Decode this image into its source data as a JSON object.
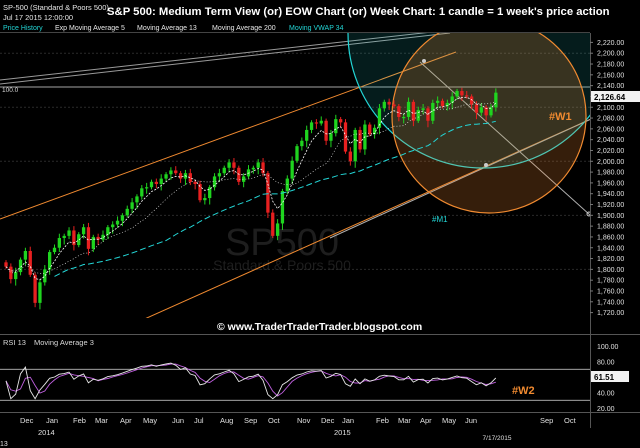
{
  "header": {
    "symbol": "SP-500 (Standard & Poors 500)",
    "datetime": "Jul 17 2015 12:00:00",
    "title": "S&P 500: Medium Term View (or) EOW Chart (or) Week Chart: 1 candle = 1 week's price action",
    "legend": [
      {
        "label": "Price History",
        "color": "#23d6d6"
      },
      {
        "label": "Exp Moving Average 5",
        "color": "#e8e8e8"
      },
      {
        "label": "Moving Average 13",
        "color": "#e8e8e8"
      },
      {
        "label": "Moving Average 200",
        "color": "#e8e8e8"
      },
      {
        "label": "Moving VWAP 34",
        "color": "#23d6d6"
      }
    ]
  },
  "watermark": {
    "symbol": "SP500",
    "name": "Standard & Poors 500"
  },
  "website": "© www.TraderTraderTrader.blogspot.com",
  "annotations": {
    "w1": "#W1",
    "m1": "#M1",
    "w2": "#W2",
    "hundred": "100.0"
  },
  "chart_data": [
    {
      "type": "candlestick",
      "title": "S&P 500: Medium Term View (or) EOW Chart (or) Week Chart: 1 candle = 1 week's price action",
      "ylim": [
        1710,
        2230
      ],
      "yticks": [
        1720,
        1740,
        1760,
        1780,
        1800,
        1820,
        1840,
        1860,
        1880,
        1900,
        1920,
        1940,
        1960,
        1980,
        2000,
        2020,
        2040,
        2060,
        2080,
        2100,
        2120,
        2140,
        2160,
        2180,
        2200,
        2220
      ],
      "last_price": "2,126.64",
      "x_labels": [
        "Dec",
        "Jan",
        "Feb",
        "Mar",
        "Apr",
        "May",
        "Jun",
        "Jul",
        "Aug",
        "Sep",
        "Oct",
        "Nov",
        "Dec",
        "Jan",
        "Feb",
        "Mar",
        "Apr",
        "May",
        "Jun",
        "7/17/2015",
        "Sep",
        "Oct"
      ],
      "x_year_labels": [
        "2014",
        "2015"
      ],
      "colors": {
        "up": "#1fd41f",
        "down": "#e82020",
        "ema5": "#ffffff",
        "ma13": "#ffffff",
        "vwap": "#23d6d6",
        "channel": "#f08a30",
        "circle_w1": "#f08a30",
        "circle_m1": "#23d6d6"
      },
      "closes": [
        1805,
        1782,
        1795,
        1818,
        1834,
        1790,
        1738,
        1776,
        1800,
        1832,
        1840,
        1858,
        1862,
        1872,
        1845,
        1865,
        1878,
        1838,
        1860,
        1855,
        1864,
        1878,
        1883,
        1890,
        1900,
        1912,
        1924,
        1935,
        1950,
        1952,
        1962,
        1958,
        1968,
        1976,
        1983,
        1978,
        1968,
        1978,
        1962,
        1958,
        1928,
        1932,
        1952,
        1972,
        1978,
        1988,
        1998,
        1988,
        1962,
        1972,
        1985,
        1988,
        1998,
        1978,
        1905,
        1862,
        1885,
        1945,
        1968,
        2001,
        2028,
        2038,
        2058,
        2072,
        2070,
        2075,
        2038,
        2052,
        2078,
        2072,
        2018,
        2000,
        2058,
        2022,
        2068,
        2050,
        2062,
        2098,
        2110,
        2105,
        2102,
        2082,
        2082,
        2110,
        2075,
        2095,
        2098,
        2075,
        2108,
        2112,
        2102,
        2108,
        2120,
        2130,
        2122,
        2120,
        2105,
        2090,
        2100,
        2085,
        2100,
        2127
      ],
      "rsi": {
        "label": "RSI 13",
        "ma_label": "Moving Average 3",
        "ylim": [
          20,
          100
        ],
        "yticks": [
          20,
          40,
          60,
          80,
          100
        ],
        "levels": [
          30,
          70
        ],
        "last_value": "61.51",
        "color": "#e8e8e8",
        "ma_color": "#c060e0"
      }
    }
  ]
}
